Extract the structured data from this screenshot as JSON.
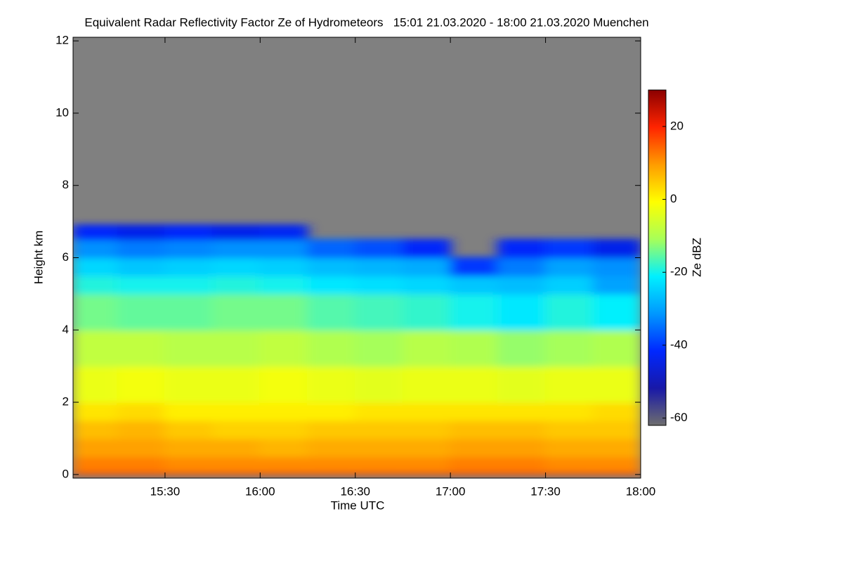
{
  "chart_data": {
    "type": "heatmap",
    "title": "Equivalent Radar Reflectivity Factor Ze of Hydrometeors   15:01 21.03.2020 - 18:00 21.03.2020 Muenchen",
    "xlabel": "Time UTC",
    "ylabel": "Height km",
    "colorbar_label": "Ze dBZ",
    "background_color": "#808080",
    "xlim": [
      901,
      1080
    ],
    "xticks": [
      {
        "value": 930,
        "label": "15:30"
      },
      {
        "value": 960,
        "label": "16:00"
      },
      {
        "value": 990,
        "label": "16:30"
      },
      {
        "value": 1020,
        "label": "17:00"
      },
      {
        "value": 1050,
        "label": "17:30"
      },
      {
        "value": 1080,
        "label": "18:00"
      }
    ],
    "ylim": [
      -0.1,
      12.1
    ],
    "yticks": [
      0,
      2,
      4,
      6,
      8,
      10,
      12
    ],
    "zlim": [
      -62,
      30
    ],
    "zticks": [
      -60,
      -40,
      -20,
      0,
      20
    ],
    "colormap": [
      "#6e6e6e",
      "#1818a8",
      "#0028ff",
      "#0098ff",
      "#00f0ff",
      "#a8ff58",
      "#ffff00",
      "#ff9c00",
      "#ff2400",
      "#8b0000"
    ],
    "x_bins": [
      901,
      915,
      930,
      945,
      960,
      975,
      990,
      1005,
      1020,
      1035,
      1050,
      1065,
      1080
    ],
    "y_bins": [
      0,
      0.1,
      0.5,
      1,
      1.5,
      2,
      3,
      4,
      5,
      5.5,
      6,
      6.5,
      6.9
    ],
    "z": [
      [
        16,
        16,
        16,
        16,
        16,
        16,
        16,
        16,
        16,
        16,
        16,
        16
      ],
      [
        12,
        12,
        11,
        11,
        11,
        11,
        11,
        11,
        12,
        12,
        11,
        11
      ],
      [
        9,
        9,
        8,
        8,
        7,
        8,
        8,
        8,
        9,
        9,
        8,
        8
      ],
      [
        6,
        7,
        5,
        4,
        4,
        5,
        5,
        5,
        6,
        6,
        5,
        5
      ],
      [
        2,
        3,
        1,
        1,
        1,
        1,
        2,
        2,
        2,
        2,
        2,
        3
      ],
      [
        -3,
        -2,
        -3,
        -3,
        -2,
        -3,
        -4,
        -3,
        -3,
        -4,
        -3,
        -3
      ],
      [
        -8,
        -8,
        -9,
        -9,
        -8,
        -10,
        -11,
        -9,
        -10,
        -12,
        -11,
        -10
      ],
      [
        -14,
        -15,
        -15,
        -14,
        -14,
        -16,
        -17,
        -18,
        -20,
        -22,
        -19,
        -21
      ],
      [
        -19,
        -20,
        -20,
        -19,
        -20,
        -22,
        -23,
        -24,
        -26,
        -27,
        -25,
        -30
      ],
      [
        -24,
        -26,
        -25,
        -24,
        -25,
        -27,
        -28,
        -29,
        -40,
        -34,
        -30,
        -32
      ],
      [
        -32,
        -34,
        -33,
        -32,
        -32,
        -36,
        -38,
        -42,
        null,
        -42,
        -40,
        -44
      ],
      [
        -42,
        -44,
        -42,
        -44,
        -43,
        null,
        null,
        null,
        null,
        null,
        null,
        null
      ]
    ]
  }
}
